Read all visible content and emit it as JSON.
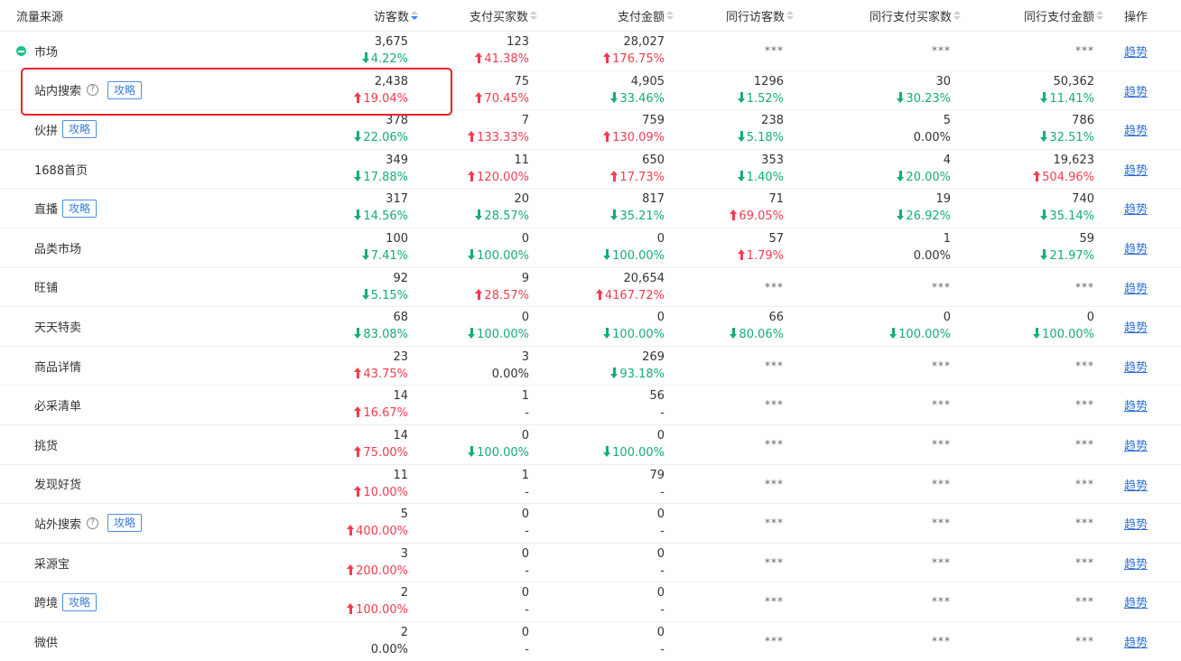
{
  "header": {
    "source": "流量来源",
    "visitors": "访客数",
    "buyers": "支付买家数",
    "amount": "支付金额",
    "peer_visitors": "同行访客数",
    "peer_buyers": "同行支付买家数",
    "peer_amount": "同行支付金额",
    "action": "操作"
  },
  "masked": "***",
  "trend_label": "趋势",
  "guide_label": "攻略",
  "help_glyph": "?",
  "colors": {
    "up": "#f23c4e",
    "down": "#15ad71",
    "link": "#2f6fd8",
    "highlight": "#e8242b",
    "dot": "#1fc18b"
  },
  "rows": [
    {
      "name": "市场",
      "dot": true,
      "visitors": {
        "v": "3,675",
        "c": "4.22%",
        "d": "down"
      },
      "buyers": {
        "v": "123",
        "c": "41.38%",
        "d": "up"
      },
      "amount": {
        "v": "28,027",
        "c": "176.75%",
        "d": "up"
      },
      "peer": null
    },
    {
      "name": "站内搜索",
      "help": true,
      "tag": true,
      "visitors": {
        "v": "2,438",
        "c": "19.04%",
        "d": "up"
      },
      "buyers": {
        "v": "75",
        "c": "70.45%",
        "d": "up"
      },
      "amount": {
        "v": "4,905",
        "c": "33.46%",
        "d": "down"
      },
      "peer": {
        "visitors": {
          "v": "1296",
          "c": "1.52%",
          "d": "down"
        },
        "buyers": {
          "v": "30",
          "c": "30.23%",
          "d": "down"
        },
        "amount": {
          "v": "50,362",
          "c": "11.41%",
          "d": "down"
        }
      }
    },
    {
      "name": "伙拼",
      "tag": true,
      "tight": true,
      "visitors": {
        "v": "378",
        "c": "22.06%",
        "d": "down"
      },
      "buyers": {
        "v": "7",
        "c": "133.33%",
        "d": "up"
      },
      "amount": {
        "v": "759",
        "c": "130.09%",
        "d": "up"
      },
      "peer": {
        "visitors": {
          "v": "238",
          "c": "5.18%",
          "d": "down"
        },
        "buyers": {
          "v": "5",
          "c": "0.00%",
          "d": "flat"
        },
        "amount": {
          "v": "786",
          "c": "32.51%",
          "d": "down"
        }
      }
    },
    {
      "name": "1688首页",
      "visitors": {
        "v": "349",
        "c": "17.88%",
        "d": "down"
      },
      "buyers": {
        "v": "11",
        "c": "120.00%",
        "d": "up"
      },
      "amount": {
        "v": "650",
        "c": "17.73%",
        "d": "up"
      },
      "peer": {
        "visitors": {
          "v": "353",
          "c": "1.40%",
          "d": "down"
        },
        "buyers": {
          "v": "4",
          "c": "20.00%",
          "d": "down"
        },
        "amount": {
          "v": "19,623",
          "c": "504.96%",
          "d": "up"
        }
      }
    },
    {
      "name": "直播",
      "tag": true,
      "tight": true,
      "visitors": {
        "v": "317",
        "c": "14.56%",
        "d": "down"
      },
      "buyers": {
        "v": "20",
        "c": "28.57%",
        "d": "down"
      },
      "amount": {
        "v": "817",
        "c": "35.21%",
        "d": "down"
      },
      "peer": {
        "visitors": {
          "v": "71",
          "c": "69.05%",
          "d": "up"
        },
        "buyers": {
          "v": "19",
          "c": "26.92%",
          "d": "down"
        },
        "amount": {
          "v": "740",
          "c": "35.14%",
          "d": "down"
        }
      }
    },
    {
      "name": "品类市场",
      "visitors": {
        "v": "100",
        "c": "7.41%",
        "d": "down"
      },
      "buyers": {
        "v": "0",
        "c": "100.00%",
        "d": "down"
      },
      "amount": {
        "v": "0",
        "c": "100.00%",
        "d": "down"
      },
      "peer": {
        "visitors": {
          "v": "57",
          "c": "1.79%",
          "d": "up"
        },
        "buyers": {
          "v": "1",
          "c": "0.00%",
          "d": "flat"
        },
        "amount": {
          "v": "59",
          "c": "21.97%",
          "d": "down"
        }
      }
    },
    {
      "name": "旺铺",
      "visitors": {
        "v": "92",
        "c": "5.15%",
        "d": "down"
      },
      "buyers": {
        "v": "9",
        "c": "28.57%",
        "d": "up"
      },
      "amount": {
        "v": "20,654",
        "c": "4167.72%",
        "d": "up"
      },
      "peer": null
    },
    {
      "name": "天天特卖",
      "visitors": {
        "v": "68",
        "c": "83.08%",
        "d": "down"
      },
      "buyers": {
        "v": "0",
        "c": "100.00%",
        "d": "down"
      },
      "amount": {
        "v": "0",
        "c": "100.00%",
        "d": "down"
      },
      "peer": {
        "visitors": {
          "v": "66",
          "c": "80.06%",
          "d": "down"
        },
        "buyers": {
          "v": "0",
          "c": "100.00%",
          "d": "down"
        },
        "amount": {
          "v": "0",
          "c": "100.00%",
          "d": "down"
        }
      }
    },
    {
      "name": "商品详情",
      "visitors": {
        "v": "23",
        "c": "43.75%",
        "d": "up"
      },
      "buyers": {
        "v": "3",
        "c": "0.00%",
        "d": "flat"
      },
      "amount": {
        "v": "269",
        "c": "93.18%",
        "d": "down"
      },
      "peer": null
    },
    {
      "name": "必采清单",
      "visitors": {
        "v": "14",
        "c": "16.67%",
        "d": "up"
      },
      "buyers": {
        "v": "1",
        "c": "-",
        "d": "flat"
      },
      "amount": {
        "v": "56",
        "c": "-",
        "d": "flat"
      },
      "peer": null
    },
    {
      "name": "挑货",
      "visitors": {
        "v": "14",
        "c": "75.00%",
        "d": "up"
      },
      "buyers": {
        "v": "0",
        "c": "100.00%",
        "d": "down"
      },
      "amount": {
        "v": "0",
        "c": "100.00%",
        "d": "down"
      },
      "peer": null
    },
    {
      "name": "发现好货",
      "visitors": {
        "v": "11",
        "c": "10.00%",
        "d": "up"
      },
      "buyers": {
        "v": "1",
        "c": "-",
        "d": "flat"
      },
      "amount": {
        "v": "79",
        "c": "-",
        "d": "flat"
      },
      "peer": null
    },
    {
      "name": "站外搜索",
      "help": true,
      "tag": true,
      "visitors": {
        "v": "5",
        "c": "400.00%",
        "d": "up"
      },
      "buyers": {
        "v": "0",
        "c": "-",
        "d": "flat"
      },
      "amount": {
        "v": "0",
        "c": "-",
        "d": "flat"
      },
      "peer": null
    },
    {
      "name": "采源宝",
      "visitors": {
        "v": "3",
        "c": "200.00%",
        "d": "up"
      },
      "buyers": {
        "v": "0",
        "c": "-",
        "d": "flat"
      },
      "amount": {
        "v": "0",
        "c": "-",
        "d": "flat"
      },
      "peer": null
    },
    {
      "name": "跨境",
      "tag": true,
      "tight": true,
      "visitors": {
        "v": "2",
        "c": "100.00%",
        "d": "up"
      },
      "buyers": {
        "v": "0",
        "c": "-",
        "d": "flat"
      },
      "amount": {
        "v": "0",
        "c": "-",
        "d": "flat"
      },
      "peer": null
    },
    {
      "name": "微供",
      "visitors": {
        "v": "2",
        "c": "0.00%",
        "d": "flat"
      },
      "buyers": {
        "v": "0",
        "c": "-",
        "d": "flat"
      },
      "amount": {
        "v": "0",
        "c": "-",
        "d": "flat"
      },
      "peer": null
    }
  ]
}
